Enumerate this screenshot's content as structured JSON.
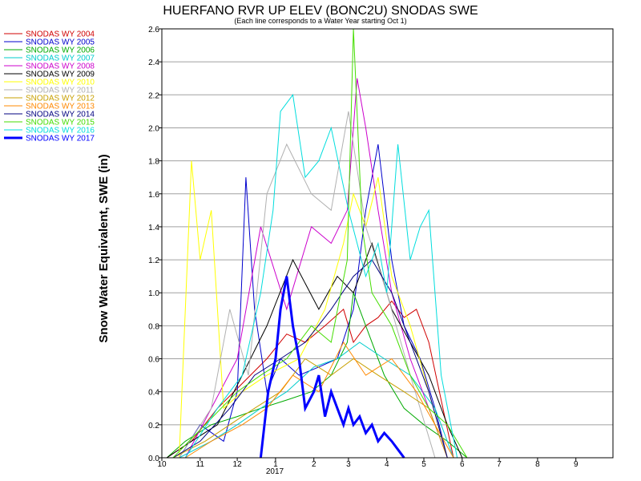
{
  "chart_data": {
    "type": "line",
    "title": "HUERFANO RVR UP ELEV (BONC2U) SNODAS SWE",
    "subtitle": "(Each line corresponds to a Water Year starting Oct 1)",
    "ylabel": "Snow Water Equivalent, SWE (in)",
    "xlabel": "",
    "x_tick_labels": [
      "10",
      "11",
      "12",
      "1",
      "2",
      "3",
      "4",
      "5",
      "6",
      "7",
      "8",
      "9"
    ],
    "x_year_label": "2017",
    "x_range": [
      "2016-10-01",
      "2017-09-30"
    ],
    "y_ticks": [
      "0.0",
      "0.2",
      "0.4",
      "0.6",
      "0.8",
      "1.0",
      "1.2",
      "1.4",
      "1.6",
      "1.8",
      "2.0",
      "2.2",
      "2.4",
      "2.6"
    ],
    "ylim": [
      0,
      2.6
    ],
    "grid": "horizontal",
    "legend_position": "left",
    "series": [
      {
        "name": "SNODAS WY 2004",
        "color": "#d00000",
        "width": 1,
        "x": [
          "2016-10-05",
          "2016-10-25",
          "2016-11-15",
          "2016-12-05",
          "2016-12-25",
          "2017-01-10",
          "2017-01-25",
          "2017-02-10",
          "2017-02-25",
          "2017-03-05",
          "2017-03-15",
          "2017-03-25",
          "2017-04-05",
          "2017-04-15",
          "2017-04-25",
          "2017-05-05",
          "2017-05-15",
          "2017-05-25"
        ],
        "y": [
          0.0,
          0.1,
          0.3,
          0.45,
          0.6,
          0.75,
          0.7,
          0.8,
          0.9,
          0.7,
          0.8,
          0.85,
          0.95,
          0.85,
          0.9,
          0.7,
          0.35,
          0.0
        ]
      },
      {
        "name": "SNODAS WY 2005",
        "color": "#0000cc",
        "width": 1,
        "x": [
          "2016-10-15",
          "2016-11-01",
          "2016-11-20",
          "2016-12-01",
          "2016-12-08",
          "2016-12-15",
          "2016-12-25",
          "2017-01-05",
          "2017-01-20",
          "2017-02-05",
          "2017-02-20",
          "2017-03-05",
          "2017-03-15",
          "2017-03-25",
          "2017-04-05",
          "2017-04-15",
          "2017-04-28",
          "2017-05-10",
          "2017-05-20"
        ],
        "y": [
          0.0,
          0.2,
          0.1,
          0.4,
          1.7,
          0.9,
          0.4,
          0.6,
          0.5,
          0.55,
          0.6,
          0.9,
          1.5,
          1.9,
          1.2,
          0.8,
          0.6,
          0.3,
          0.0
        ]
      },
      {
        "name": "SNODAS WY 2006",
        "color": "#00aa00",
        "width": 1,
        "x": [
          "2016-10-05",
          "2016-10-20",
          "2016-11-10",
          "2016-12-01",
          "2016-12-20",
          "2017-01-10",
          "2017-01-30",
          "2017-02-15",
          "2017-02-28",
          "2017-03-05",
          "2017-03-15",
          "2017-03-30",
          "2017-04-15",
          "2017-05-01",
          "2017-05-20",
          "2017-06-05"
        ],
        "y": [
          0.0,
          0.1,
          0.2,
          0.25,
          0.3,
          0.35,
          0.4,
          0.5,
          0.7,
          1.0,
          0.8,
          0.5,
          0.3,
          0.2,
          0.1,
          0.0
        ]
      },
      {
        "name": "SNODAS WY 2007",
        "color": "#00cccc",
        "width": 1,
        "x": [
          "2016-10-15",
          "2016-11-10",
          "2016-12-01",
          "2016-12-20",
          "2017-01-10",
          "2017-02-01",
          "2017-02-20",
          "2017-03-10",
          "2017-03-30",
          "2017-04-20",
          "2017-05-10",
          "2017-05-25"
        ],
        "y": [
          0.0,
          0.1,
          0.2,
          0.3,
          0.4,
          0.55,
          0.6,
          0.7,
          0.6,
          0.5,
          0.3,
          0.0
        ]
      },
      {
        "name": "SNODAS WY 2008",
        "color": "#cc00cc",
        "width": 1,
        "x": [
          "2016-10-20",
          "2016-11-10",
          "2016-12-01",
          "2016-12-20",
          "2017-01-10",
          "2017-01-30",
          "2017-02-15",
          "2017-02-28",
          "2017-03-08",
          "2017-03-15",
          "2017-03-25",
          "2017-04-05",
          "2017-04-20",
          "2017-05-05",
          "2017-05-20"
        ],
        "y": [
          0.0,
          0.3,
          0.6,
          1.4,
          0.9,
          1.4,
          1.3,
          1.5,
          2.3,
          2.0,
          1.5,
          1.0,
          0.6,
          0.3,
          0.0
        ]
      },
      {
        "name": "SNODAS WY 2009",
        "color": "#000000",
        "width": 1,
        "x": [
          "2016-10-05",
          "2016-10-25",
          "2016-11-15",
          "2016-12-05",
          "2016-12-25",
          "2017-01-15",
          "2017-02-05",
          "2017-02-20",
          "2017-03-05",
          "2017-03-20",
          "2017-04-05",
          "2017-04-20",
          "2017-05-05",
          "2017-05-20",
          "2017-06-01"
        ],
        "y": [
          0.0,
          0.1,
          0.2,
          0.5,
          0.8,
          1.2,
          0.9,
          1.1,
          1.0,
          1.3,
          0.9,
          0.7,
          0.5,
          0.2,
          0.0
        ]
      },
      {
        "name": "SNODAS WY 2010",
        "color": "#ffff00",
        "width": 1,
        "x": [
          "2016-10-15",
          "2016-10-25",
          "2016-11-01",
          "2016-11-10",
          "2016-11-20",
          "2016-12-05",
          "2016-12-25",
          "2017-01-20",
          "2017-02-10",
          "2017-02-25",
          "2017-03-05",
          "2017-03-15",
          "2017-03-25",
          "2017-04-05",
          "2017-04-20",
          "2017-05-05",
          "2017-05-20"
        ],
        "y": [
          0.0,
          1.8,
          1.2,
          1.5,
          0.3,
          0.4,
          0.5,
          0.6,
          0.9,
          1.3,
          1.6,
          1.4,
          1.7,
          1.1,
          0.8,
          0.4,
          0.0
        ]
      },
      {
        "name": "SNODAS WY 2011",
        "color": "#b0b0b0",
        "width": 1,
        "x": [
          "2016-10-15",
          "2016-11-10",
          "2016-11-25",
          "2016-12-10",
          "2016-12-25",
          "2017-01-10",
          "2017-01-30",
          "2017-02-15",
          "2017-03-01",
          "2017-03-15",
          "2017-04-01",
          "2017-04-20",
          "2017-05-10"
        ],
        "y": [
          0.0,
          0.3,
          0.9,
          0.5,
          1.6,
          1.9,
          1.6,
          1.5,
          2.1,
          1.4,
          1.0,
          0.5,
          0.0
        ]
      },
      {
        "name": "SNODAS WY 2012",
        "color": "#c8a000",
        "width": 1,
        "x": [
          "2016-10-10",
          "2016-11-05",
          "2016-11-25",
          "2016-12-15",
          "2017-01-05",
          "2017-01-25",
          "2017-02-15",
          "2017-03-05",
          "2017-03-25",
          "2017-04-15",
          "2017-05-05",
          "2017-05-20"
        ],
        "y": [
          0.0,
          0.1,
          0.2,
          0.3,
          0.4,
          0.6,
          0.5,
          0.6,
          0.5,
          0.4,
          0.3,
          0.0
        ]
      },
      {
        "name": "SNODAS WY 2013",
        "color": "#ff8800",
        "width": 1,
        "x": [
          "2016-10-20",
          "2016-11-10",
          "2016-12-05",
          "2016-12-25",
          "2017-01-15",
          "2017-02-05",
          "2017-02-25",
          "2017-03-15",
          "2017-04-05",
          "2017-04-25",
          "2017-05-10",
          "2017-05-25"
        ],
        "y": [
          0.0,
          0.1,
          0.2,
          0.3,
          0.5,
          0.4,
          0.7,
          0.5,
          0.6,
          0.4,
          0.2,
          0.0
        ]
      },
      {
        "name": "SNODAS WY 2014",
        "color": "#000080",
        "width": 1,
        "x": [
          "2016-10-10",
          "2016-11-01",
          "2016-11-25",
          "2016-12-15",
          "2017-01-05",
          "2017-01-25",
          "2017-02-15",
          "2017-03-05",
          "2017-03-20",
          "2017-04-05",
          "2017-04-20",
          "2017-05-05",
          "2017-05-20"
        ],
        "y": [
          0.0,
          0.1,
          0.3,
          0.5,
          0.6,
          0.7,
          0.9,
          1.1,
          1.2,
          1.0,
          0.7,
          0.4,
          0.0
        ]
      },
      {
        "name": "SNODAS WY 2015",
        "color": "#44dd00",
        "width": 1,
        "x": [
          "2016-10-10",
          "2016-11-05",
          "2016-12-01",
          "2016-12-20",
          "2017-01-10",
          "2017-01-30",
          "2017-02-15",
          "2017-02-28",
          "2017-03-05",
          "2017-03-12",
          "2017-03-20",
          "2017-04-05",
          "2017-04-20",
          "2017-05-05",
          "2017-05-20",
          "2017-06-05"
        ],
        "y": [
          0.0,
          0.2,
          0.4,
          0.5,
          0.6,
          0.8,
          0.7,
          1.2,
          2.6,
          1.4,
          1.0,
          0.8,
          0.5,
          0.3,
          0.2,
          0.0
        ]
      },
      {
        "name": "SNODAS WY 2016",
        "color": "#00dddd",
        "width": 1,
        "x": [
          "2016-10-20",
          "2016-11-15",
          "2016-12-05",
          "2016-12-20",
          "2016-12-30",
          "2017-01-05",
          "2017-01-15",
          "2017-01-25",
          "2017-02-05",
          "2017-02-15",
          "2017-03-01",
          "2017-03-15",
          "2017-03-25",
          "2017-04-01",
          "2017-04-10",
          "2017-04-20",
          "2017-04-28",
          "2017-05-05",
          "2017-05-15",
          "2017-05-28"
        ],
        "y": [
          0.0,
          0.3,
          0.5,
          1.0,
          1.5,
          2.1,
          2.2,
          1.7,
          1.8,
          2.0,
          1.5,
          1.1,
          1.3,
          1.0,
          1.9,
          1.2,
          1.4,
          1.5,
          0.5,
          0.0
        ]
      },
      {
        "name": "SNODAS WY 2017",
        "color": "#0000ff",
        "width": 3,
        "x": [
          "2016-12-20",
          "2016-12-26",
          "2017-01-01",
          "2017-01-05",
          "2017-01-10",
          "2017-01-15",
          "2017-01-20",
          "2017-01-25",
          "2017-02-01",
          "2017-02-05",
          "2017-02-10",
          "2017-02-15",
          "2017-02-20",
          "2017-02-25",
          "2017-03-01",
          "2017-03-05",
          "2017-03-10",
          "2017-03-15",
          "2017-03-20",
          "2017-03-25",
          "2017-03-30",
          "2017-04-05",
          "2017-04-10",
          "2017-04-15"
        ],
        "y": [
          0.0,
          0.4,
          0.6,
          0.9,
          1.1,
          0.8,
          0.6,
          0.3,
          0.4,
          0.5,
          0.25,
          0.4,
          0.3,
          0.2,
          0.3,
          0.2,
          0.25,
          0.15,
          0.2,
          0.1,
          0.15,
          0.1,
          0.05,
          0.0
        ]
      }
    ]
  }
}
